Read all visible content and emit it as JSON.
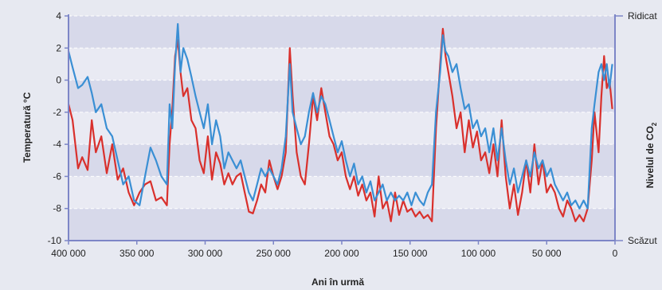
{
  "chart_data": {
    "type": "line",
    "title": "",
    "xlabel": "Ani în urmă",
    "ylabel": "Temperatură °C",
    "y2label": "Nivelul de CO",
    "y2label_sub": "2",
    "y2_ticks": {
      "high": "Ridicat",
      "low": "Scăzut"
    },
    "xlim": [
      400000,
      0
    ],
    "ylim": [
      -10,
      4
    ],
    "x_ticks": [
      400000,
      350000,
      300000,
      250000,
      200000,
      150000,
      100000,
      50000,
      0
    ],
    "x_tick_labels": [
      "400 000",
      "350 000",
      "300 000",
      "250 000",
      "200 000",
      "150 000",
      "100 000",
      "50 000",
      "0"
    ],
    "y_ticks": [
      4,
      2,
      0,
      -2,
      -4,
      -6,
      -8,
      -10
    ],
    "y_tick_labels": [
      "4",
      "2",
      "0",
      "-2",
      "-4",
      "-6",
      "-8",
      "-10"
    ],
    "grid": "horizontal bands",
    "series": [
      {
        "color": "#d9302c",
        "points": [
          [
            400000,
            -1.5
          ],
          [
            397000,
            -2.5
          ],
          [
            393000,
            -5.5
          ],
          [
            390000,
            -4.8
          ],
          [
            386000,
            -5.6
          ],
          [
            383000,
            -2.5
          ],
          [
            380000,
            -4.5
          ],
          [
            376000,
            -3.5
          ],
          [
            372000,
            -5.8
          ],
          [
            368000,
            -4
          ],
          [
            364000,
            -6.2
          ],
          [
            360000,
            -5.5
          ],
          [
            356000,
            -7
          ],
          [
            352000,
            -7.8
          ],
          [
            348000,
            -7
          ],
          [
            344000,
            -6.5
          ],
          [
            340000,
            -6.3
          ],
          [
            336000,
            -7.5
          ],
          [
            332000,
            -7.3
          ],
          [
            328000,
            -7.8
          ],
          [
            326000,
            -4
          ],
          [
            324000,
            -1.8
          ],
          [
            322000,
            1.5
          ],
          [
            320000,
            2.5
          ],
          [
            318000,
            0.5
          ],
          [
            316000,
            -1
          ],
          [
            313000,
            -0.5
          ],
          [
            310000,
            -2.5
          ],
          [
            307000,
            -3
          ],
          [
            304000,
            -5
          ],
          [
            301000,
            -5.8
          ],
          [
            298000,
            -3.5
          ],
          [
            295000,
            -6.2
          ],
          [
            292000,
            -4.5
          ],
          [
            289000,
            -5.2
          ],
          [
            286000,
            -6.5
          ],
          [
            283000,
            -5.8
          ],
          [
            280000,
            -6.5
          ],
          [
            277000,
            -6
          ],
          [
            274000,
            -5.8
          ],
          [
            271000,
            -7
          ],
          [
            268000,
            -8.2
          ],
          [
            265000,
            -8.3
          ],
          [
            262000,
            -7.5
          ],
          [
            259000,
            -6.5
          ],
          [
            256000,
            -7
          ],
          [
            253000,
            -5
          ],
          [
            250000,
            -6
          ],
          [
            247000,
            -6.8
          ],
          [
            244000,
            -6
          ],
          [
            241000,
            -4.5
          ],
          [
            238000,
            2
          ],
          [
            236000,
            -1
          ],
          [
            233000,
            -4.5
          ],
          [
            230000,
            -6
          ],
          [
            227000,
            -6.5
          ],
          [
            224000,
            -4
          ],
          [
            221000,
            -1
          ],
          [
            218000,
            -2.5
          ],
          [
            215000,
            -0.5
          ],
          [
            212000,
            -2
          ],
          [
            209000,
            -3.5
          ],
          [
            206000,
            -4
          ],
          [
            203000,
            -5
          ],
          [
            200000,
            -4.5
          ],
          [
            197000,
            -6
          ],
          [
            194000,
            -6.8
          ],
          [
            191000,
            -6
          ],
          [
            188000,
            -7.2
          ],
          [
            185000,
            -6.5
          ],
          [
            182000,
            -7.5
          ],
          [
            179000,
            -7
          ],
          [
            176000,
            -8.5
          ],
          [
            173000,
            -6
          ],
          [
            170000,
            -8
          ],
          [
            167000,
            -7.5
          ],
          [
            164000,
            -8.8
          ],
          [
            161000,
            -7
          ],
          [
            158000,
            -8.4
          ],
          [
            155000,
            -7.5
          ],
          [
            152000,
            -8.2
          ],
          [
            149000,
            -8
          ],
          [
            146000,
            -8.5
          ],
          [
            143000,
            -8.2
          ],
          [
            140000,
            -8.6
          ],
          [
            137000,
            -8.4
          ],
          [
            134000,
            -8.8
          ],
          [
            131000,
            -3
          ],
          [
            128000,
            1
          ],
          [
            126000,
            3.2
          ],
          [
            124000,
            1.5
          ],
          [
            122000,
            0.5
          ],
          [
            119000,
            -1
          ],
          [
            116000,
            -3
          ],
          [
            113000,
            -2
          ],
          [
            110000,
            -4.5
          ],
          [
            107000,
            -2.5
          ],
          [
            104000,
            -4.2
          ],
          [
            101000,
            -3.2
          ],
          [
            98000,
            -5
          ],
          [
            95000,
            -4.5
          ],
          [
            92000,
            -5.8
          ],
          [
            89000,
            -4
          ],
          [
            86000,
            -6
          ],
          [
            83000,
            -2.5
          ],
          [
            80000,
            -6
          ],
          [
            77000,
            -8
          ],
          [
            74000,
            -6.5
          ],
          [
            71000,
            -8.4
          ],
          [
            68000,
            -7
          ],
          [
            65000,
            -5
          ],
          [
            62000,
            -7
          ],
          [
            59000,
            -4
          ],
          [
            56000,
            -6.5
          ],
          [
            53000,
            -5
          ],
          [
            50000,
            -7
          ],
          [
            47000,
            -6.5
          ],
          [
            44000,
            -7
          ],
          [
            41000,
            -8
          ],
          [
            38000,
            -8.5
          ],
          [
            35000,
            -7.5
          ],
          [
            32000,
            -8
          ],
          [
            29000,
            -8.8
          ],
          [
            26000,
            -8.4
          ],
          [
            23000,
            -8.8
          ],
          [
            20000,
            -8
          ],
          [
            17000,
            -5
          ],
          [
            15000,
            -2
          ],
          [
            12000,
            -4.5
          ],
          [
            10000,
            -1
          ],
          [
            8000,
            1.5
          ],
          [
            6000,
            -0.5
          ],
          [
            4000,
            0
          ],
          [
            2000,
            -1.8
          ]
        ]
      },
      {
        "color": "#3a8fd4",
        "points": [
          [
            400000,
            1.8
          ],
          [
            397000,
            0.8
          ],
          [
            393000,
            -0.5
          ],
          [
            390000,
            -0.3
          ],
          [
            386000,
            0.2
          ],
          [
            383000,
            -0.8
          ],
          [
            380000,
            -2
          ],
          [
            376000,
            -1.5
          ],
          [
            372000,
            -3
          ],
          [
            368000,
            -3.5
          ],
          [
            364000,
            -5
          ],
          [
            360000,
            -6.5
          ],
          [
            356000,
            -6
          ],
          [
            352000,
            -7.5
          ],
          [
            348000,
            -7.8
          ],
          [
            344000,
            -6
          ],
          [
            340000,
            -4.2
          ],
          [
            336000,
            -5
          ],
          [
            332000,
            -6
          ],
          [
            328000,
            -6.5
          ],
          [
            326000,
            -1.5
          ],
          [
            324000,
            -3
          ],
          [
            322000,
            1
          ],
          [
            320000,
            3.5
          ],
          [
            318000,
            0.5
          ],
          [
            316000,
            2
          ],
          [
            313000,
            1.3
          ],
          [
            310000,
            0.2
          ],
          [
            307000,
            -1
          ],
          [
            304000,
            -2
          ],
          [
            301000,
            -3
          ],
          [
            298000,
            -1.5
          ],
          [
            295000,
            -4
          ],
          [
            292000,
            -2.5
          ],
          [
            289000,
            -3.5
          ],
          [
            286000,
            -5.5
          ],
          [
            283000,
            -4.5
          ],
          [
            280000,
            -5
          ],
          [
            277000,
            -5.5
          ],
          [
            274000,
            -5
          ],
          [
            271000,
            -6
          ],
          [
            268000,
            -7
          ],
          [
            265000,
            -7.5
          ],
          [
            262000,
            -6.5
          ],
          [
            259000,
            -5.5
          ],
          [
            256000,
            -6
          ],
          [
            253000,
            -5.5
          ],
          [
            250000,
            -6
          ],
          [
            247000,
            -6.5
          ],
          [
            244000,
            -5.5
          ],
          [
            241000,
            -3.5
          ],
          [
            238000,
            1
          ],
          [
            236000,
            -2
          ],
          [
            233000,
            -3
          ],
          [
            230000,
            -4
          ],
          [
            227000,
            -3.5
          ],
          [
            224000,
            -2
          ],
          [
            221000,
            -0.8
          ],
          [
            218000,
            -2
          ],
          [
            215000,
            -1
          ],
          [
            212000,
            -1.5
          ],
          [
            209000,
            -2.5
          ],
          [
            206000,
            -3.5
          ],
          [
            203000,
            -4.5
          ],
          [
            200000,
            -3.8
          ],
          [
            197000,
            -5
          ],
          [
            194000,
            -6
          ],
          [
            191000,
            -5.2
          ],
          [
            188000,
            -6.5
          ],
          [
            185000,
            -6
          ],
          [
            182000,
            -7
          ],
          [
            179000,
            -6.3
          ],
          [
            176000,
            -7.5
          ],
          [
            173000,
            -7
          ],
          [
            170000,
            -6.5
          ],
          [
            167000,
            -7.5
          ],
          [
            164000,
            -7
          ],
          [
            161000,
            -7.5
          ],
          [
            158000,
            -7.2
          ],
          [
            155000,
            -7.5
          ],
          [
            152000,
            -7
          ],
          [
            149000,
            -7.8
          ],
          [
            146000,
            -7
          ],
          [
            143000,
            -7.5
          ],
          [
            140000,
            -7.8
          ],
          [
            137000,
            -7
          ],
          [
            134000,
            -6.5
          ],
          [
            131000,
            -2
          ],
          [
            128000,
            0.5
          ],
          [
            126000,
            2.8
          ],
          [
            124000,
            1.8
          ],
          [
            122000,
            1.5
          ],
          [
            119000,
            0.5
          ],
          [
            116000,
            1
          ],
          [
            113000,
            -0.5
          ],
          [
            110000,
            -1.8
          ],
          [
            107000,
            -1.5
          ],
          [
            104000,
            -3
          ],
          [
            101000,
            -2.5
          ],
          [
            98000,
            -3.5
          ],
          [
            95000,
            -3
          ],
          [
            92000,
            -4.5
          ],
          [
            89000,
            -3
          ],
          [
            86000,
            -5
          ],
          [
            83000,
            -3
          ],
          [
            80000,
            -5
          ],
          [
            77000,
            -6.5
          ],
          [
            74000,
            -5.5
          ],
          [
            71000,
            -7
          ],
          [
            68000,
            -6
          ],
          [
            65000,
            -5
          ],
          [
            62000,
            -6
          ],
          [
            59000,
            -4.5
          ],
          [
            56000,
            -5.5
          ],
          [
            53000,
            -5
          ],
          [
            50000,
            -6
          ],
          [
            47000,
            -5.5
          ],
          [
            44000,
            -6.5
          ],
          [
            41000,
            -7
          ],
          [
            38000,
            -7.5
          ],
          [
            35000,
            -7
          ],
          [
            32000,
            -7.8
          ],
          [
            29000,
            -7.5
          ],
          [
            26000,
            -8
          ],
          [
            23000,
            -7.5
          ],
          [
            20000,
            -8
          ],
          [
            17000,
            -3
          ],
          [
            15000,
            -1.5
          ],
          [
            12000,
            0.5
          ],
          [
            10000,
            1
          ],
          [
            8000,
            0
          ],
          [
            6000,
            1
          ],
          [
            4000,
            -0.5
          ],
          [
            2000,
            1
          ]
        ]
      }
    ]
  }
}
